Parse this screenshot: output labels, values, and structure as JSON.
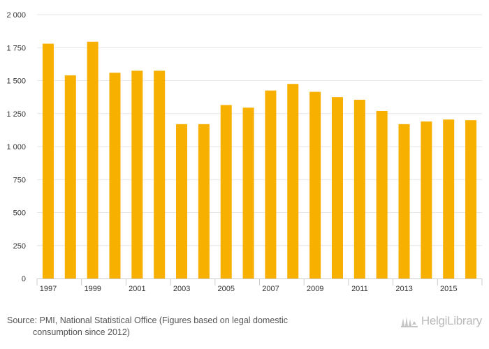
{
  "chart_data": {
    "type": "bar",
    "categories": [
      "1997",
      "1998",
      "1999",
      "2000",
      "2001",
      "2002",
      "2003",
      "2004",
      "2005",
      "2006",
      "2007",
      "2008",
      "2009",
      "2010",
      "2011",
      "2012",
      "2013",
      "2014",
      "2015",
      "2016"
    ],
    "x_tick_labels": [
      "1997",
      "1999",
      "2001",
      "2003",
      "2005",
      "2007",
      "2009",
      "2011",
      "2013",
      "2015"
    ],
    "values": [
      1780,
      1540,
      1795,
      1560,
      1575,
      1575,
      1170,
      1170,
      1315,
      1295,
      1425,
      1475,
      1415,
      1375,
      1355,
      1270,
      1170,
      1190,
      1205,
      1200
    ],
    "y_tick_labels": [
      "0",
      "250",
      "500",
      "750",
      "1 000",
      "1 250",
      "1 500",
      "1 750",
      "2 000"
    ],
    "ylim": [
      0,
      2000
    ],
    "y_tick_step": 250,
    "grid": true,
    "bar_color": "#f7af00",
    "grid_color": "#e6e6e6",
    "axis_color": "#cccccc"
  },
  "source": {
    "line1": "Source: PMI, National Statistical Office (Figures based on legal domestic",
    "line2": "consumption since 2012)"
  },
  "brand": {
    "name": "HelgiLibrary",
    "icon": "library-building-icon"
  }
}
